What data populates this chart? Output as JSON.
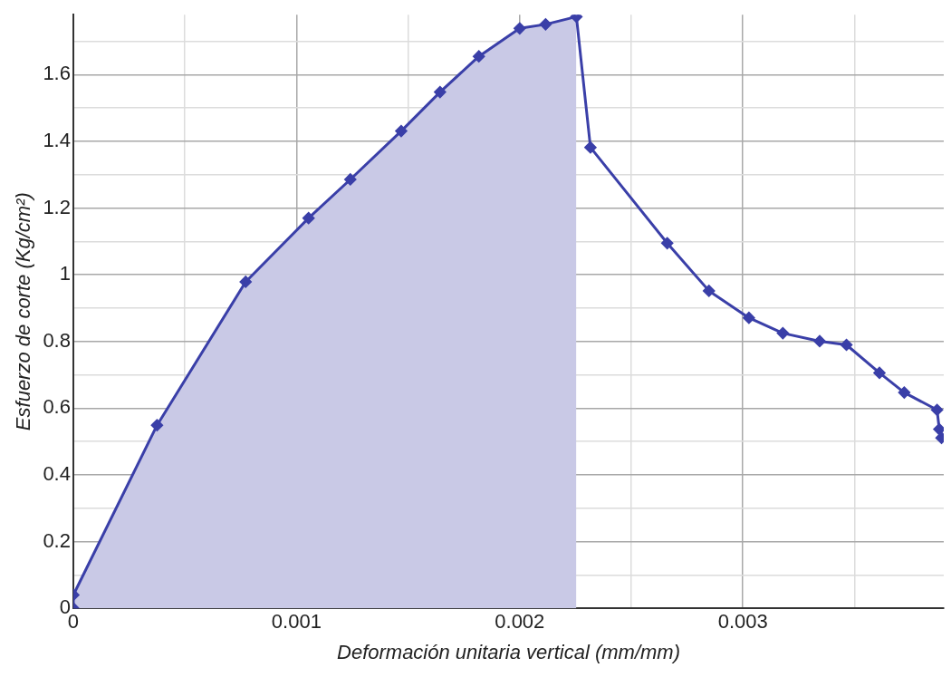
{
  "chart_data": {
    "type": "line",
    "xlabel": "Deformación unitaria vertical (mm/mm)",
    "ylabel": "Esfuerzo de corte (Kg/cm²)",
    "xlim": [
      0,
      0.0039
    ],
    "ylim": [
      0,
      1.78
    ],
    "xticks": [
      0,
      {
        "value": 0.0005,
        "label": null
      },
      0.001,
      {
        "value": 0.0015,
        "label": null
      },
      0.002,
      {
        "value": 0.0025,
        "label": null
      },
      0.003,
      {
        "value": 0.0035,
        "label": null
      }
    ],
    "yticks": [
      0,
      {
        "value": 0.1,
        "label": null
      },
      0.2,
      {
        "value": 0.3,
        "label": null
      },
      0.4,
      {
        "value": 0.5,
        "label": null
      },
      0.6,
      {
        "value": 0.7,
        "label": null
      },
      0.8,
      {
        "value": 0.9,
        "label": null
      },
      1,
      {
        "value": 1.1,
        "label": null
      },
      1.2,
      {
        "value": 1.3,
        "label": null
      },
      1.4,
      {
        "value": 1.5,
        "label": null
      },
      1.6,
      {
        "value": 1.7,
        "label": null
      }
    ],
    "grid": true,
    "legend": false,
    "marker": "diamond",
    "series": [
      {
        "type": "area",
        "color": "#c9c9e6",
        "marker": "none",
        "x": [
          0,
          0,
          0.000375,
          0.000772,
          0.001054,
          0.001241,
          0.001469,
          0.001643,
          0.001817,
          0.002,
          0.002116,
          0.002254
        ],
        "values": [
          0,
          0.04,
          0.549,
          0.979,
          1.17,
          1.286,
          1.431,
          1.548,
          1.655,
          1.739,
          1.751,
          1.774
        ]
      },
      {
        "type": "line",
        "color": "#3a3fa8",
        "x": [
          0,
          0,
          0.000375,
          0.000772,
          0.001054,
          0.001241,
          0.001469,
          0.001643,
          0.001817,
          0.002,
          0.002116,
          0.002254,
          0.002317,
          0.002661,
          0.002848,
          0.003027,
          0.003179,
          0.003344,
          0.003464,
          0.003612,
          0.003723,
          0.00387,
          0.00388,
          0.00389
        ],
        "values": [
          0,
          0.04,
          0.549,
          0.979,
          1.17,
          1.286,
          1.431,
          1.548,
          1.655,
          1.739,
          1.751,
          1.774,
          1.382,
          1.095,
          0.952,
          0.871,
          0.825,
          0.801,
          0.79,
          0.706,
          0.647,
          0.595,
          0.537,
          0.511
        ]
      }
    ]
  }
}
